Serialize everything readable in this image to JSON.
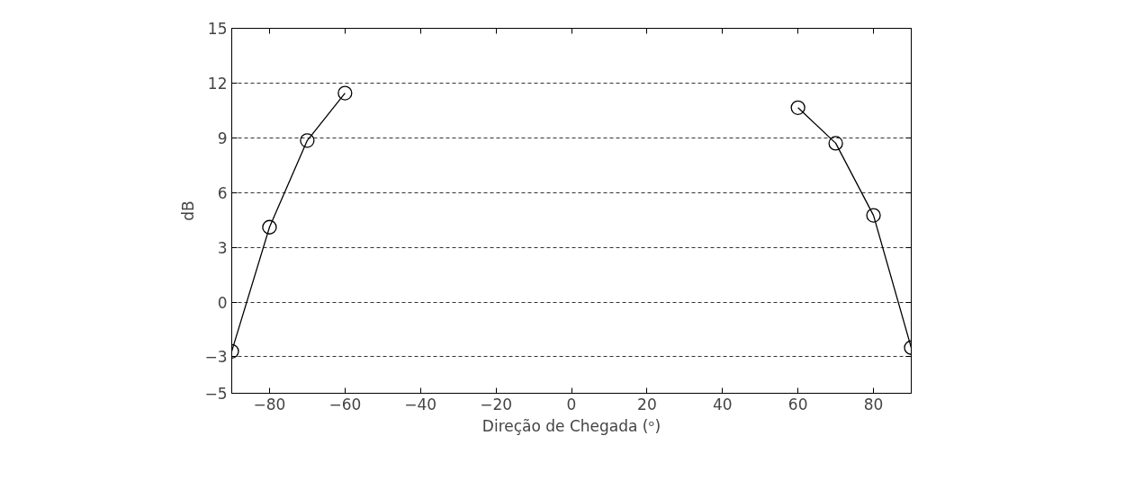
{
  "chart_data": {
    "type": "line",
    "xlabel": "Direção de Chegada (ᵒ)",
    "ylabel": "dB",
    "xlim": [
      -90,
      90
    ],
    "xticks": [
      -80,
      -60,
      -40,
      -20,
      0,
      20,
      40,
      60,
      80
    ],
    "ylim": [
      -5,
      15
    ],
    "yticks": [
      -5,
      -3,
      0,
      3,
      6,
      9,
      12,
      15
    ],
    "grid": "y",
    "marker": "circle",
    "line_style": "solid",
    "series": [
      {
        "color": "#000000",
        "x": [
          -90,
          -80,
          -70,
          -60
        ],
        "values": [
          -2.7,
          4.1,
          8.85,
          11.45
        ]
      },
      {
        "color": "#000000",
        "x": [
          60,
          70,
          80,
          90
        ],
        "values": [
          10.65,
          8.7,
          4.75,
          -2.5
        ]
      }
    ]
  }
}
